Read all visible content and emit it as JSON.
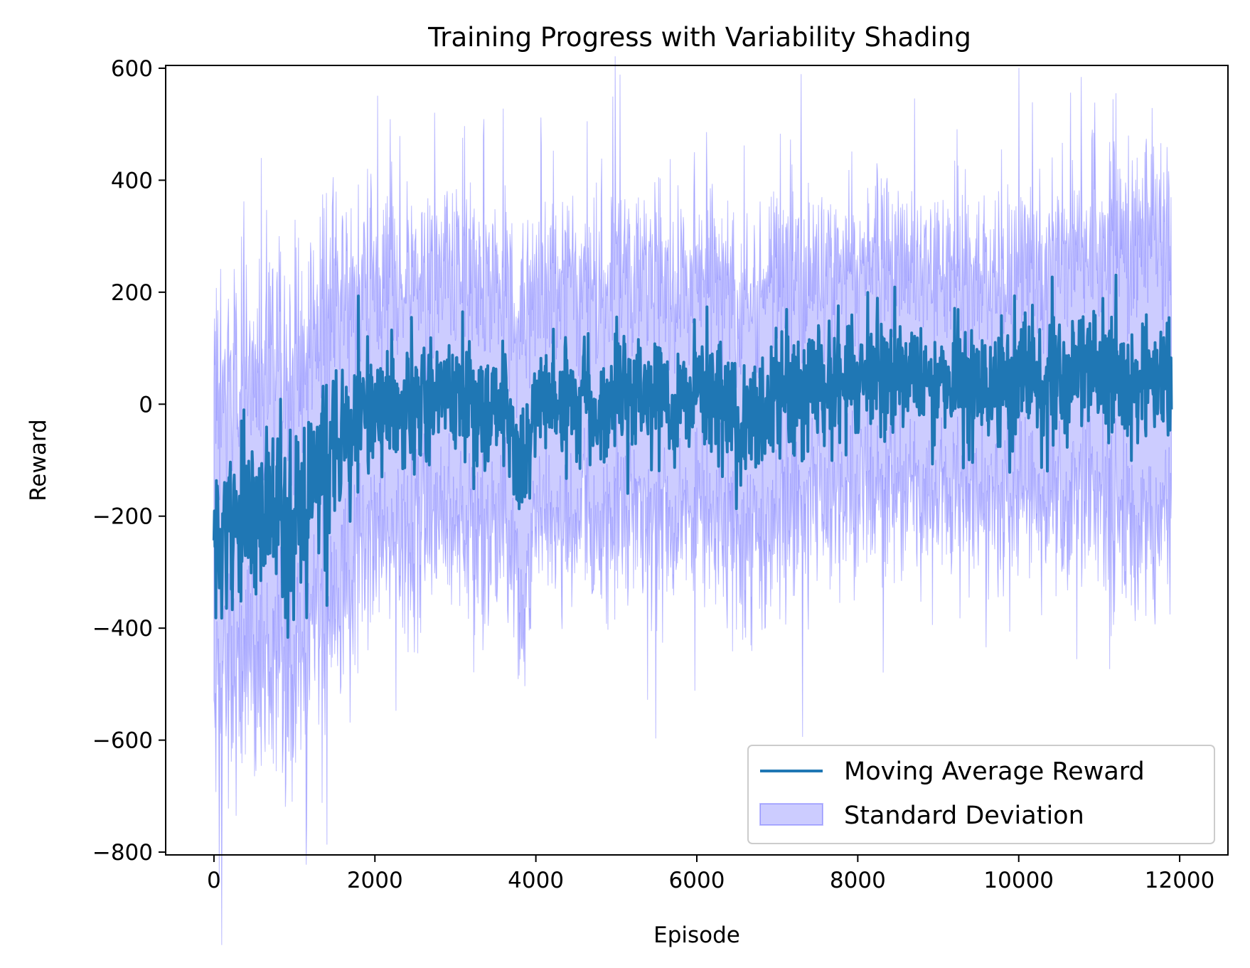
{
  "chart_data": {
    "type": "line",
    "title": "Training Progress with Variability Shading",
    "xlabel": "Episode",
    "ylabel": "Reward",
    "xlim": [
      -600,
      12600
    ],
    "ylim": [
      -805,
      605
    ],
    "xticks": [
      0,
      2000,
      4000,
      6000,
      8000,
      10000,
      12000
    ],
    "yticks": [
      -800,
      -600,
      -400,
      -200,
      0,
      200,
      400,
      600
    ],
    "xtick_labels": [
      "0",
      "2000",
      "4000",
      "6000",
      "8000",
      "10000",
      "12000"
    ],
    "ytick_labels": [
      "−800",
      "−600",
      "−400",
      "−200",
      "0",
      "200",
      "400",
      "600"
    ],
    "legend": {
      "placement": "lower-right",
      "entries": [
        "Moving Average Reward",
        "Standard Deviation"
      ]
    },
    "colors": {
      "line": "#1f77b4",
      "band": "#0000ff"
    },
    "series": [
      {
        "name": "Moving Average Reward",
        "x": [
          0,
          100,
          200,
          300,
          400,
          500,
          600,
          700,
          800,
          900,
          1000,
          1100,
          1200,
          1300,
          1400,
          1500,
          1600,
          1700,
          1800,
          1900,
          2000,
          2200,
          2400,
          2600,
          2800,
          3000,
          3200,
          3400,
          3600,
          3700,
          3800,
          3900,
          4000,
          4200,
          4400,
          4600,
          4800,
          5000,
          5200,
          5400,
          5600,
          5700,
          5800,
          6000,
          6200,
          6400,
          6600,
          6800,
          7000,
          7200,
          7400,
          7600,
          7800,
          8000,
          8200,
          8400,
          8600,
          8800,
          9000,
          9200,
          9400,
          9600,
          9800,
          10000,
          10200,
          10400,
          10600,
          10800,
          11000,
          11200,
          11400,
          11500,
          11600,
          11700,
          11800,
          11900
        ],
        "values": [
          -220,
          -250,
          -210,
          -230,
          -200,
          -215,
          -205,
          -200,
          -210,
          -230,
          -200,
          -180,
          -150,
          -140,
          -110,
          -90,
          -70,
          -50,
          -30,
          -20,
          -10,
          -5,
          0,
          5,
          10,
          15,
          10,
          5,
          0,
          -40,
          -120,
          -60,
          0,
          10,
          5,
          0,
          -40,
          20,
          25,
          15,
          10,
          -40,
          10,
          20,
          10,
          0,
          -30,
          0,
          15,
          10,
          20,
          30,
          40,
          45,
          50,
          55,
          50,
          45,
          40,
          35,
          30,
          25,
          30,
          35,
          40,
          45,
          50,
          55,
          60,
          50,
          20,
          50,
          70,
          60,
          60,
          50
        ],
        "upper": [
          30,
          10,
          40,
          30,
          60,
          50,
          60,
          70,
          60,
          40,
          70,
          90,
          120,
          130,
          160,
          170,
          180,
          200,
          210,
          220,
          220,
          220,
          230,
          230,
          240,
          240,
          240,
          230,
          220,
          190,
          130,
          180,
          220,
          230,
          230,
          220,
          190,
          240,
          240,
          230,
          230,
          190,
          230,
          240,
          230,
          220,
          200,
          220,
          230,
          220,
          230,
          240,
          250,
          250,
          255,
          260,
          255,
          250,
          245,
          240,
          235,
          230,
          235,
          240,
          245,
          250,
          260,
          270,
          290,
          300,
          280,
          310,
          330,
          320,
          310,
          300
        ],
        "lower": [
          -480,
          -520,
          -470,
          -490,
          -460,
          -480,
          -470,
          -470,
          -480,
          -500,
          -470,
          -450,
          -420,
          -410,
          -380,
          -350,
          -320,
          -300,
          -270,
          -260,
          -240,
          -230,
          -230,
          -220,
          -220,
          -210,
          -220,
          -230,
          -220,
          -270,
          -370,
          -300,
          -220,
          -210,
          -220,
          -220,
          -270,
          -200,
          -190,
          -200,
          -210,
          -270,
          -210,
          -200,
          -210,
          -220,
          -260,
          -220,
          -200,
          -200,
          -190,
          -180,
          -170,
          -160,
          -155,
          -150,
          -155,
          -160,
          -165,
          -170,
          -175,
          -180,
          -175,
          -170,
          -165,
          -160,
          -160,
          -160,
          -170,
          -200,
          -240,
          -210,
          -190,
          -200,
          -210,
          -200
        ]
      }
    ]
  }
}
